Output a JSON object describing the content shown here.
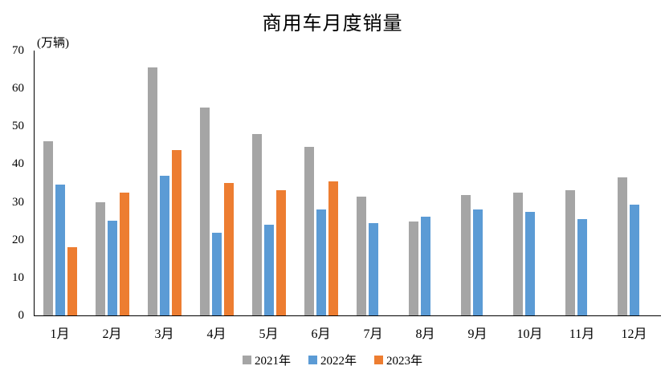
{
  "title": "商用车月度销量",
  "chart_data": {
    "type": "bar",
    "title": "商用车月度销量",
    "ylabel": "(万辆)",
    "xlabel": "",
    "categories": [
      "1月",
      "2月",
      "3月",
      "4月",
      "5月",
      "6月",
      "7月",
      "8月",
      "9月",
      "10月",
      "11月",
      "12月"
    ],
    "y_ticks": [
      0,
      10,
      20,
      30,
      40,
      50,
      60,
      70
    ],
    "ylim": [
      0,
      70
    ],
    "grid": false,
    "legend_position": "bottom",
    "series": [
      {
        "name": "2021年",
        "color": "#A5A5A5",
        "values": [
          46,
          30,
          65.5,
          55,
          48,
          44.5,
          31.3,
          24.8,
          31.8,
          32.5,
          33,
          36.5
        ]
      },
      {
        "name": "2022年",
        "color": "#5B9BD5",
        "values": [
          34.5,
          25,
          37,
          21.8,
          24,
          28,
          24.5,
          26,
          28,
          27.3,
          25.5,
          29.2
        ]
      },
      {
        "name": "2023年",
        "color": "#ED7D31",
        "values": [
          18,
          32.4,
          43.7,
          35,
          33,
          35.5,
          null,
          null,
          null,
          null,
          null,
          null
        ]
      }
    ]
  },
  "colors": {
    "axis": "#000000",
    "series_2021": "#A5A5A5",
    "series_2022": "#5B9BD5",
    "series_2023": "#ED7D31"
  }
}
